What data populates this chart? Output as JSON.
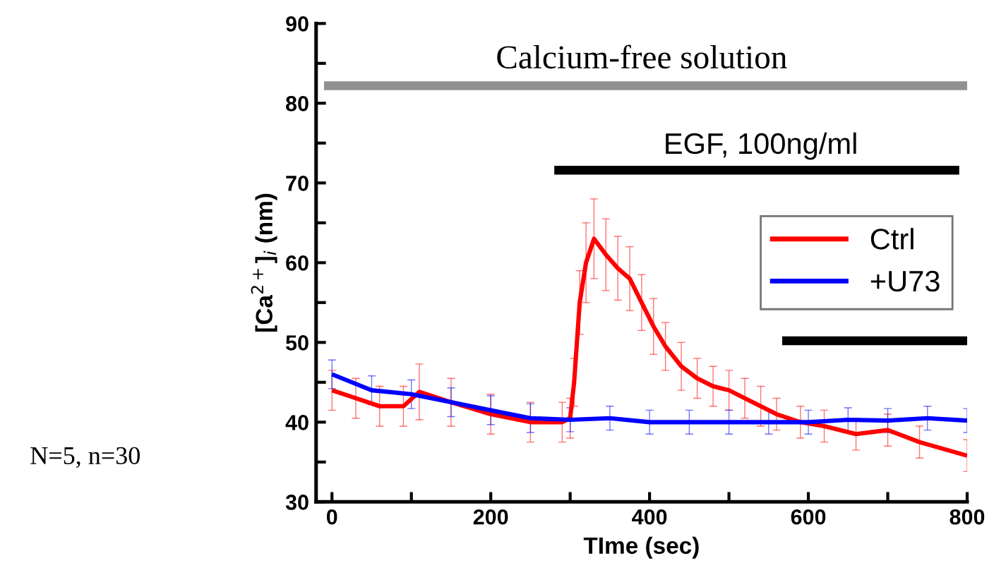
{
  "chart_data": {
    "type": "line",
    "xlabel": "TIme (sec)",
    "ylabel": "[Ca$^{2+}$]$_{i}$ (nm)",
    "xlim": [
      -20,
      800
    ],
    "ylim": [
      30,
      90
    ],
    "xticks": [
      0,
      {
        "value": 100,
        "label": null
      },
      200,
      {
        "value": 300,
        "label": null
      },
      400,
      {
        "value": 500,
        "label": null
      },
      600,
      {
        "value": 700,
        "label": null
      },
      800
    ],
    "yticks": [
      30,
      {
        "value": 35,
        "label": null
      },
      40,
      {
        "value": 45,
        "label": null
      },
      50,
      {
        "value": 55,
        "label": null
      },
      60,
      {
        "value": 65,
        "label": null
      },
      70,
      {
        "value": 75,
        "label": null
      },
      80,
      {
        "value": 85,
        "label": null
      },
      90
    ],
    "grid": false,
    "legend": "right",
    "marker": "none",
    "line_style": "solid",
    "series": [
      {
        "name": "Ctrl",
        "color": "#ff0000",
        "x": [
          0,
          30,
          60,
          90,
          110,
          150,
          200,
          250,
          290,
          300,
          305,
          312,
          320,
          330,
          345,
          360,
          375,
          390,
          405,
          420,
          440,
          460,
          480,
          500,
          520,
          540,
          560,
          590,
          620,
          660,
          700,
          740,
          800
        ],
        "values": [
          44,
          43,
          42,
          42,
          43.8,
          42.5,
          41,
          40,
          40,
          40.5,
          45,
          55,
          60,
          63,
          61,
          59.3,
          58,
          55,
          52,
          49.5,
          47,
          45.5,
          44.5,
          44,
          43,
          42,
          41,
          40,
          39.5,
          38.5,
          39,
          37.5,
          35.8
        ],
        "errors": [
          2.5,
          2.5,
          2.5,
          2.5,
          3.5,
          3,
          2.5,
          2.5,
          2.5,
          2.5,
          3,
          4,
          5,
          5,
          4.5,
          4,
          4,
          3.5,
          3.5,
          3,
          3,
          2.5,
          2.5,
          2.5,
          2.5,
          2.5,
          2,
          2,
          2,
          2,
          2,
          2,
          2
        ]
      },
      {
        "name": "+U73",
        "color": "#0000ff",
        "x": [
          0,
          50,
          100,
          150,
          200,
          250,
          300,
          350,
          400,
          450,
          500,
          550,
          600,
          650,
          700,
          750,
          800
        ],
        "values": [
          46,
          44,
          43.5,
          42.5,
          41.5,
          40.5,
          40.3,
          40.5,
          40,
          40,
          40,
          40,
          40,
          40.3,
          40.2,
          40.5,
          40.2
        ],
        "errors": [
          1.8,
          1.8,
          1.8,
          1.8,
          1.8,
          1.8,
          1.5,
          1.5,
          1.5,
          1.5,
          1.5,
          1.5,
          1.5,
          1.5,
          1.5,
          1.5,
          1.5
        ]
      },
      {
        "type": "line",
        "color": "#909090",
        "x": [
          -10,
          800
        ],
        "values": [
          82.2,
          82.2
        ]
      },
      {
        "type": "line",
        "color": "#000000",
        "x": [
          280,
          790
        ],
        "values": [
          71.6,
          71.6
        ]
      },
      {
        "type": "line",
        "color": "#000000",
        "x": [
          567,
          800
        ],
        "values": [
          50.2,
          50.2
        ]
      }
    ],
    "annotations": [
      {
        "text": "Calcium-free solution",
        "x": 390,
        "y": 82.2
      },
      {
        "text": "EGF, 100ng/ml",
        "x": 540,
        "y": 71.6
      },
      "N=5, n=30"
    ]
  }
}
